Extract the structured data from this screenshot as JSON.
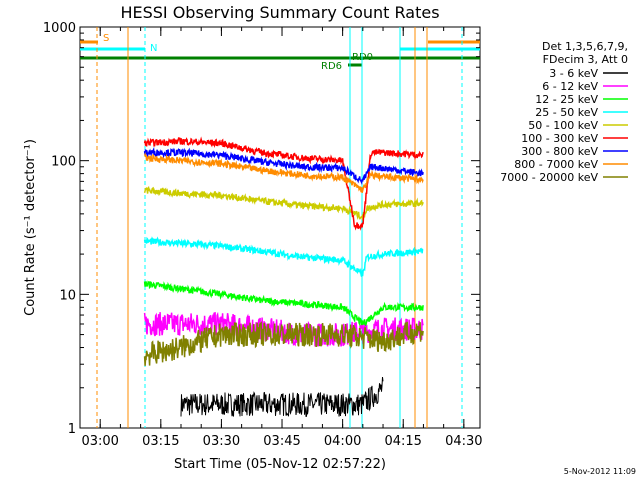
{
  "chart_data": {
    "type": "line",
    "title": "HESSI Observing Summary Count Rates",
    "xlabel": "Start Time (05-Nov-12 02:57:22)",
    "ylabel": "Count Rate (s⁻¹ detector⁻¹)",
    "y_scale": "log",
    "ylim": [
      1,
      1000
    ],
    "xlim": [
      "02:55",
      "04:34"
    ],
    "x_ticks": [
      "03:00",
      "03:15",
      "03:30",
      "03:45",
      "04:00",
      "04:15",
      "04:30"
    ],
    "y_ticks": [
      "1",
      "10",
      "100",
      "1000"
    ],
    "legend_header": [
      "Det 1,3,5,6,7,9,",
      "FDecim 3, Att 0"
    ],
    "footer": "5-Nov-2012 11:09",
    "series": [
      {
        "name": "3 - 6 keV",
        "color": "#000000",
        "x": [
          "03:20",
          "03:30",
          "03:40",
          "03:50",
          "04:00",
          "04:05",
          "04:10"
        ],
        "y": [
          1.5,
          1.5,
          1.5,
          1.5,
          1.5,
          1.5,
          2.0
        ]
      },
      {
        "name": "6 - 12 keV",
        "color": "#ff00ff",
        "x": [
          "03:11",
          "03:20",
          "03:30",
          "03:40",
          "03:50",
          "04:00",
          "04:10",
          "04:20"
        ],
        "y": [
          6,
          6,
          6,
          5.5,
          5,
          5,
          5.5,
          5.5
        ]
      },
      {
        "name": "12 - 25 keV",
        "color": "#00ff00",
        "x": [
          "03:11",
          "03:20",
          "03:30",
          "03:40",
          "03:50",
          "04:00",
          "04:05",
          "04:10",
          "04:20"
        ],
        "y": [
          12,
          11,
          10,
          9,
          8.5,
          8,
          6,
          8,
          8
        ]
      },
      {
        "name": "25 - 50 keV",
        "color": "#00ffff",
        "x": [
          "03:11",
          "03:20",
          "03:30",
          "03:40",
          "03:50",
          "04:00",
          "04:05",
          "04:06",
          "04:10",
          "04:20"
        ],
        "y": [
          25,
          24,
          23,
          21,
          19,
          18,
          14,
          19,
          20,
          21
        ]
      },
      {
        "name": "50 - 100 keV",
        "color": "#cccc00",
        "x": [
          "03:11",
          "03:20",
          "03:30",
          "03:40",
          "03:50",
          "04:00",
          "04:05",
          "04:06",
          "04:10",
          "04:20"
        ],
        "y": [
          60,
          57,
          55,
          50,
          46,
          44,
          38,
          44,
          47,
          48
        ]
      },
      {
        "name": "100 - 300 keV",
        "color": "#ff0000",
        "x": [
          "03:11",
          "03:20",
          "03:30",
          "03:40",
          "03:50",
          "04:00",
          "04:03",
          "04:05",
          "04:07",
          "04:10",
          "04:20"
        ],
        "y": [
          135,
          140,
          135,
          115,
          105,
          100,
          33,
          33,
          115,
          115,
          110
        ]
      },
      {
        "name": "300 - 800 keV",
        "color": "#0000ff",
        "x": [
          "03:11",
          "03:20",
          "03:30",
          "03:40",
          "03:50",
          "04:00",
          "04:05",
          "04:07",
          "04:10",
          "04:20"
        ],
        "y": [
          115,
          115,
          110,
          98,
          90,
          88,
          70,
          90,
          88,
          80
        ]
      },
      {
        "name": "800 - 7000 keV",
        "color": "#ff8c00",
        "x": [
          "03:11",
          "03:20",
          "03:30",
          "03:40",
          "03:50",
          "04:00",
          "04:05",
          "04:07",
          "04:10",
          "04:20"
        ],
        "y": [
          105,
          100,
          95,
          85,
          78,
          75,
          60,
          78,
          76,
          72
        ]
      },
      {
        "name": "7000 - 20000 keV",
        "color": "#808000",
        "x": [
          "03:11",
          "03:20",
          "03:30",
          "03:40",
          "03:50",
          "04:00",
          "04:10",
          "04:20"
        ],
        "y": [
          3.5,
          4,
          5,
          5,
          5,
          5,
          4.5,
          5.5
        ]
      }
    ],
    "annotations": [
      {
        "label": "S",
        "color": "#ff8c00"
      },
      {
        "label": "N",
        "color": "#00ffff"
      },
      {
        "label": "RD6",
        "color": "#008000"
      },
      {
        "label": "RD0",
        "color": "#008000"
      }
    ]
  }
}
